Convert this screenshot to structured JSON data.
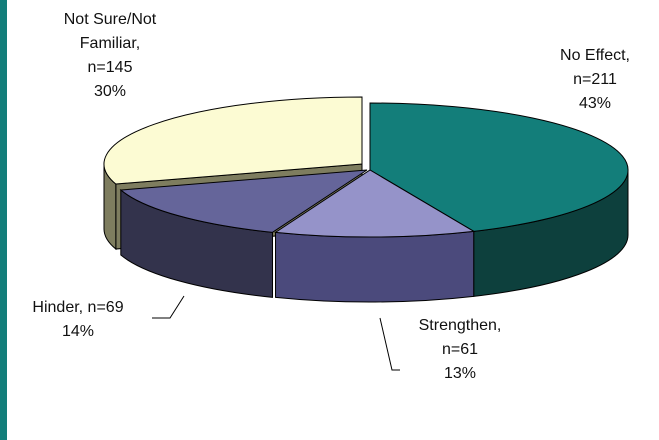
{
  "chart_data": {
    "type": "pie",
    "style": "3d-exploded",
    "slices": [
      {
        "key": "no_effect",
        "label": [
          "No Effect,",
          "n=211",
          "43%"
        ],
        "n": 211,
        "percent": 43,
        "top": "#137e7a",
        "side": "#0d403d"
      },
      {
        "key": "strengthen",
        "label": [
          "Strengthen,",
          "n=61",
          "13%"
        ],
        "n": 61,
        "percent": 13,
        "top": "#9593c9",
        "side": "#4b4a7c"
      },
      {
        "key": "hinder",
        "label": [
          "Hinder, n=69",
          "14%"
        ],
        "n": 69,
        "percent": 14,
        "top": "#65659a",
        "side": "#33334c"
      },
      {
        "key": "not_sure",
        "label": [
          "Not Sure/Not",
          "Familiar,",
          "n=145",
          "30%"
        ],
        "n": 145,
        "percent": 30,
        "top": "#fcfbd3",
        "side": "#7e7d5f"
      }
    ]
  },
  "colors": {
    "left_accent": "#137e7a",
    "outline": "#000000"
  }
}
